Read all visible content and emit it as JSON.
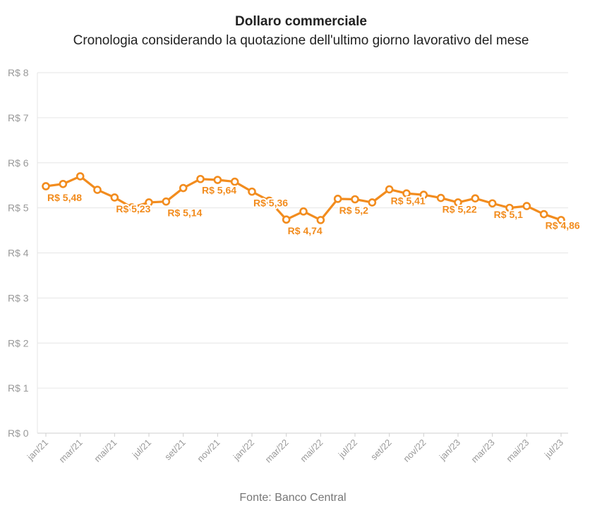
{
  "chart_data": {
    "type": "line",
    "title": "Dollaro commerciale",
    "subtitle": "Cronologia considerando la quotazione dell'ultimo giorno lavorativo del mese",
    "source": "Fonte: Banco Central",
    "xlabel": "",
    "ylabel": "",
    "ylim": [
      0,
      8
    ],
    "y_ticks": [
      "R$ 0",
      "R$ 1",
      "R$ 2",
      "R$ 3",
      "R$ 4",
      "R$ 5",
      "R$ 6",
      "R$ 7",
      "R$ 8"
    ],
    "grid": true,
    "color": "#f28c1e",
    "x": [
      "jan/21",
      "fev/21",
      "mar/21",
      "abr/21",
      "mai/21",
      "jun/21",
      "jul/21",
      "ago/21",
      "set/21",
      "out/21",
      "nov/21",
      "dez/21",
      "jan/22",
      "fev/22",
      "mar/22",
      "abr/22",
      "mai/22",
      "jun/22",
      "jul/22",
      "ago/22",
      "set/22",
      "out/22",
      "nov/22",
      "dez/22",
      "jan/23",
      "fev/23",
      "mar/23",
      "abr/23",
      "mai/23",
      "jun/23",
      "jul/23"
    ],
    "x_tick_labels": [
      "jan/21",
      "mar/21",
      "mai/21",
      "jul/21",
      "set/21",
      "nov/21",
      "jan/22",
      "mar/22",
      "mai/22",
      "jul/22",
      "set/22",
      "nov/22",
      "jan/23",
      "mar/23",
      "mai/23",
      "jul/23"
    ],
    "values": [
      5.48,
      5.53,
      5.7,
      5.4,
      5.23,
      5.01,
      5.12,
      5.14,
      5.44,
      5.64,
      5.62,
      5.58,
      5.36,
      5.16,
      4.74,
      4.92,
      4.73,
      5.2,
      5.19,
      5.12,
      5.41,
      5.32,
      5.29,
      5.22,
      5.12,
      5.21,
      5.1,
      5.0,
      5.04,
      4.86,
      4.73
    ],
    "data_labels": [
      {
        "index": 0,
        "text": "R$ 5,48"
      },
      {
        "index": 4,
        "text": "R$ 5,23"
      },
      {
        "index": 7,
        "text": "R$ 5,14"
      },
      {
        "index": 9,
        "text": "R$ 5,64"
      },
      {
        "index": 12,
        "text": "R$ 5,36"
      },
      {
        "index": 14,
        "text": "R$ 4,74"
      },
      {
        "index": 17,
        "text": "R$ 5,2"
      },
      {
        "index": 20,
        "text": "R$ 5,41"
      },
      {
        "index": 23,
        "text": "R$ 5,22"
      },
      {
        "index": 26,
        "text": "R$ 5,1"
      },
      {
        "index": 29,
        "text": "R$ 4,86"
      }
    ]
  }
}
